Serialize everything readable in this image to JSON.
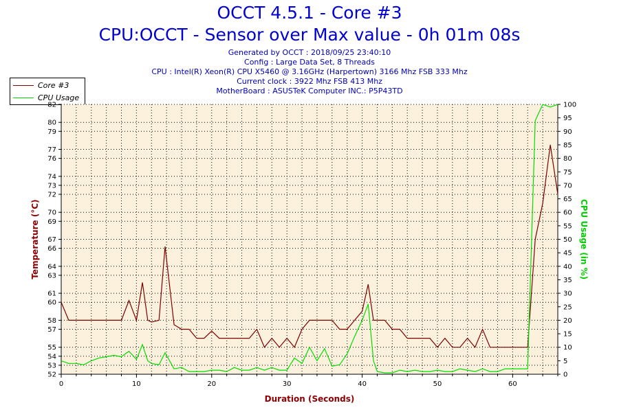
{
  "header": {
    "title": "OCCT 4.5.1 - Core #3",
    "subtitle": "CPU:OCCT - Sensor over Max value - 0h 01m 08s",
    "info_lines": [
      "Generated by OCCT : 2018/09/25 23:40:10",
      "Config : Large Data Set, 8 Threads",
      "CPU : Intel(R) Xeon(R) CPU X5460 @ 3.16GHz (Harpertown) 3166 Mhz FSB 333 Mhz",
      "Current clock : 3922 Mhz FSB 413 Mhz",
      "MotherBoard : ASUSTeK Computer INC.: P5P43TD"
    ]
  },
  "colors": {
    "temperature": "#7a0000",
    "cpu_usage": "#00dd00",
    "plot_bg": "#fbf1dc",
    "axis_title": "#8b0000",
    "cpu_axis_title": "#00cc00"
  },
  "chart_data": {
    "type": "line",
    "xlabel": "Duration (Seconds)",
    "ylabel": "Temperature (°C)",
    "y2label": "CPU Usage (in %)",
    "xlim": [
      0,
      66
    ],
    "ylim": [
      52,
      82
    ],
    "y2lim": [
      0,
      100
    ],
    "grid": true,
    "legend_position": "top-left",
    "x_ticks": [
      0,
      10,
      20,
      30,
      40,
      50,
      60
    ],
    "y_ticks": [
      52,
      53,
      54,
      55,
      57,
      58,
      60,
      61,
      63,
      64,
      66,
      67,
      69,
      70,
      72,
      73,
      74,
      76,
      77,
      79,
      80,
      82
    ],
    "y2_ticks": [
      0,
      5,
      10,
      15,
      20,
      25,
      30,
      35,
      40,
      45,
      50,
      55,
      60,
      65,
      70,
      75,
      80,
      85,
      90,
      95,
      100
    ],
    "series": [
      {
        "name": "Core #3",
        "axis": "left",
        "x": [
          0,
          1,
          2,
          3,
          4,
          5,
          6,
          7,
          8,
          9,
          10,
          10.8,
          11.5,
          12,
          13,
          13.8,
          15,
          16,
          17,
          18,
          19,
          20,
          21,
          22,
          23,
          24,
          25,
          26,
          27,
          28,
          29,
          30,
          31,
          32,
          33,
          34,
          35,
          36,
          37,
          38,
          39,
          40,
          40.8,
          41.5,
          42,
          43,
          44,
          45,
          46,
          47,
          48,
          49,
          50,
          51,
          52,
          53,
          54,
          55,
          56,
          57,
          58,
          59,
          60,
          61,
          62,
          63,
          64,
          65,
          66
        ],
        "values": [
          60,
          58,
          58,
          58,
          58,
          58,
          58,
          58,
          58,
          60.2,
          58,
          62.2,
          58,
          57.8,
          58,
          66.2,
          57.5,
          57,
          57,
          56,
          56,
          56.8,
          56,
          56,
          56,
          56,
          56,
          57,
          55,
          56,
          55,
          56,
          55,
          57,
          58,
          58,
          58,
          58,
          57,
          57,
          58,
          59,
          62,
          58,
          58,
          58,
          57,
          57,
          56,
          56,
          56,
          56,
          55,
          56,
          55,
          55,
          56,
          55,
          57,
          55,
          55,
          55,
          55,
          55,
          55,
          67,
          71,
          77.5,
          72
        ]
      },
      {
        "name": "CPU Usage",
        "axis": "right",
        "x": [
          0,
          1,
          2,
          3,
          4,
          5,
          6,
          7,
          8,
          9,
          10,
          10.8,
          11.5,
          12,
          13,
          13.8,
          15,
          16,
          17,
          18,
          19,
          20,
          21,
          22,
          23,
          24,
          25,
          26,
          27,
          28,
          29,
          30,
          31,
          32,
          33,
          34,
          35,
          36,
          37,
          38,
          39,
          40,
          40.8,
          41.5,
          42,
          43,
          44,
          45,
          46,
          47,
          48,
          49,
          50,
          51,
          52,
          53,
          54,
          55,
          56,
          57,
          58,
          59,
          60,
          61,
          62,
          63,
          64,
          65,
          66
        ],
        "values": [
          5,
          4,
          4,
          3.5,
          5,
          6,
          6.5,
          7,
          6.5,
          8.5,
          5.5,
          11,
          5,
          4,
          3.5,
          8,
          2,
          2.5,
          1,
          1,
          1,
          1.5,
          1.5,
          1,
          2.5,
          1.5,
          1.5,
          2.5,
          1.5,
          2.5,
          1.5,
          1.5,
          6,
          4,
          10,
          5,
          9.5,
          3,
          3.5,
          7.5,
          14,
          20,
          26,
          5,
          1,
          0.5,
          0.5,
          1.5,
          1,
          1.5,
          1,
          1,
          1.5,
          1,
          1,
          2,
          1.5,
          1,
          2,
          1,
          1,
          2,
          2,
          2,
          2,
          94,
          100,
          99,
          100
        ]
      }
    ]
  }
}
